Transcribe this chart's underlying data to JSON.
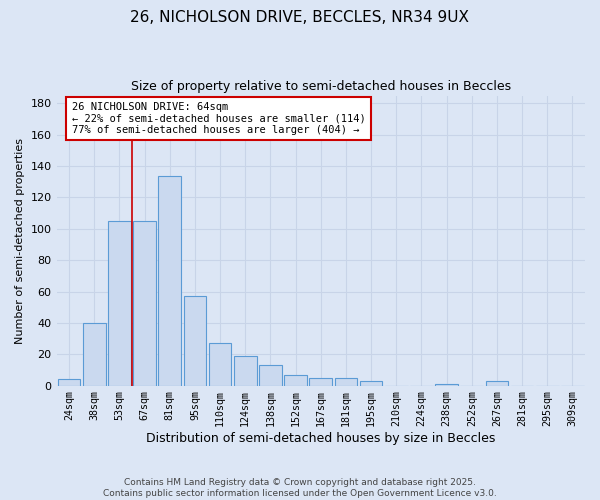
{
  "title1": "26, NICHOLSON DRIVE, BECCLES, NR34 9UX",
  "title2": "Size of property relative to semi-detached houses in Beccles",
  "xlabel": "Distribution of semi-detached houses by size in Beccles",
  "ylabel": "Number of semi-detached properties",
  "bin_labels": [
    "24sqm",
    "38sqm",
    "53sqm",
    "67sqm",
    "81sqm",
    "95sqm",
    "110sqm",
    "124sqm",
    "138sqm",
    "152sqm",
    "167sqm",
    "181sqm",
    "195sqm",
    "210sqm",
    "224sqm",
    "238sqm",
    "252sqm",
    "267sqm",
    "281sqm",
    "295sqm",
    "309sqm"
  ],
  "bar_heights": [
    4,
    40,
    105,
    105,
    134,
    57,
    27,
    19,
    13,
    7,
    5,
    5,
    3,
    0,
    0,
    1,
    0,
    3,
    0,
    0,
    0
  ],
  "bar_color": "#cad9ef",
  "bar_edge_color": "#5b9bd5",
  "grid_color": "#c8d4e8",
  "background_color": "#dce6f5",
  "vline_color": "#cc0000",
  "annotation_text": "26 NICHOLSON DRIVE: 64sqm\n← 22% of semi-detached houses are smaller (114)\n77% of semi-detached houses are larger (404) →",
  "annotation_box_color": "#ffffff",
  "annotation_box_edge": "#cc0000",
  "footer_text": "Contains HM Land Registry data © Crown copyright and database right 2025.\nContains public sector information licensed under the Open Government Licence v3.0.",
  "ylim": [
    0,
    185
  ],
  "yticks": [
    0,
    20,
    40,
    60,
    80,
    100,
    120,
    140,
    160,
    180
  ]
}
